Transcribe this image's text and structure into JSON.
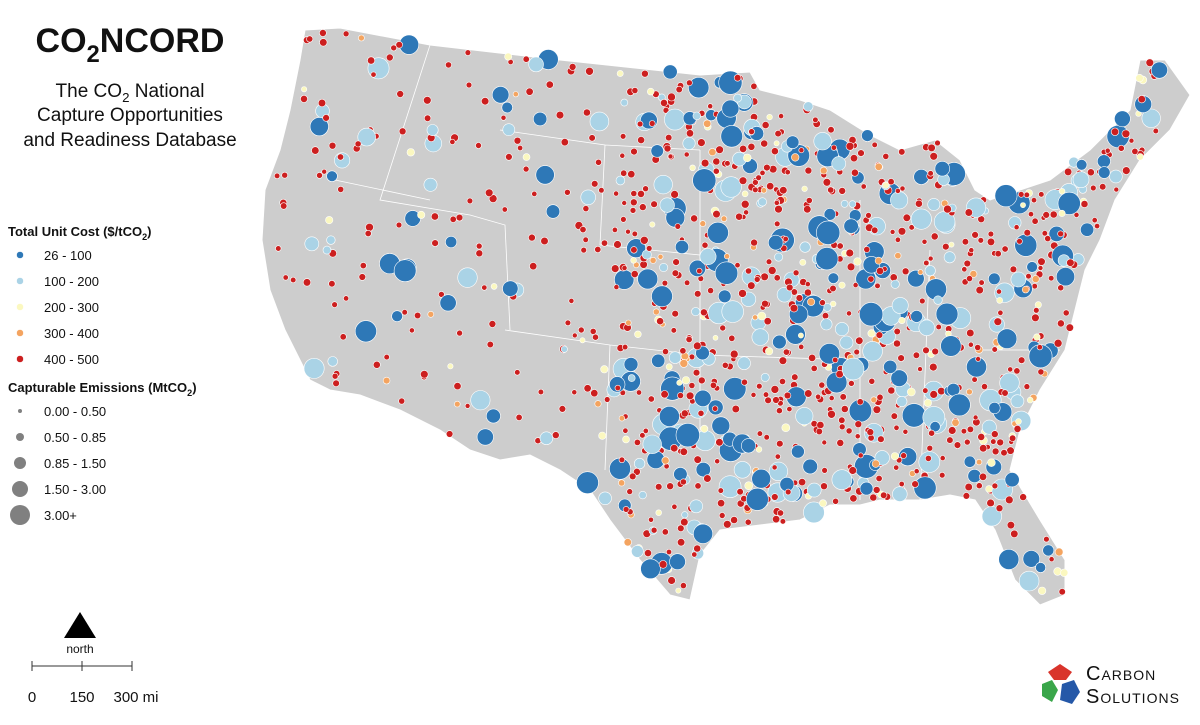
{
  "title": [
    "CO",
    "2",
    "NCORD"
  ],
  "subtitle": [
    [
      "The CO",
      "2",
      " National"
    ],
    [
      "Capture Opportunities"
    ],
    [
      "and Readiness Database"
    ]
  ],
  "legend_cost": {
    "title": [
      "Total Unit Cost ($/tCO",
      "2",
      ")"
    ],
    "items": [
      {
        "label": "26 - 100",
        "color": "#2e78b7"
      },
      {
        "label": "100 - 200",
        "color": "#aad3e6"
      },
      {
        "label": "200 - 300",
        "color": "#fbf8c0"
      },
      {
        "label": "300 - 400",
        "color": "#f4a460"
      },
      {
        "label": "400 - 500",
        "color": "#cc1f1f"
      }
    ]
  },
  "legend_emissions": {
    "title": [
      "Capturable Emissions (MtCO",
      "2",
      ")"
    ],
    "items": [
      "0.00 - 0.50",
      "0.50 - 0.85",
      "0.85 - 1.50",
      "1.50 - 3.00",
      "3.00+"
    ],
    "color": "#808080"
  },
  "north_label": "north",
  "scale_labels": [
    "0",
    "150",
    "300 mi"
  ],
  "logo": [
    "Carbon",
    "Solutions"
  ]
}
